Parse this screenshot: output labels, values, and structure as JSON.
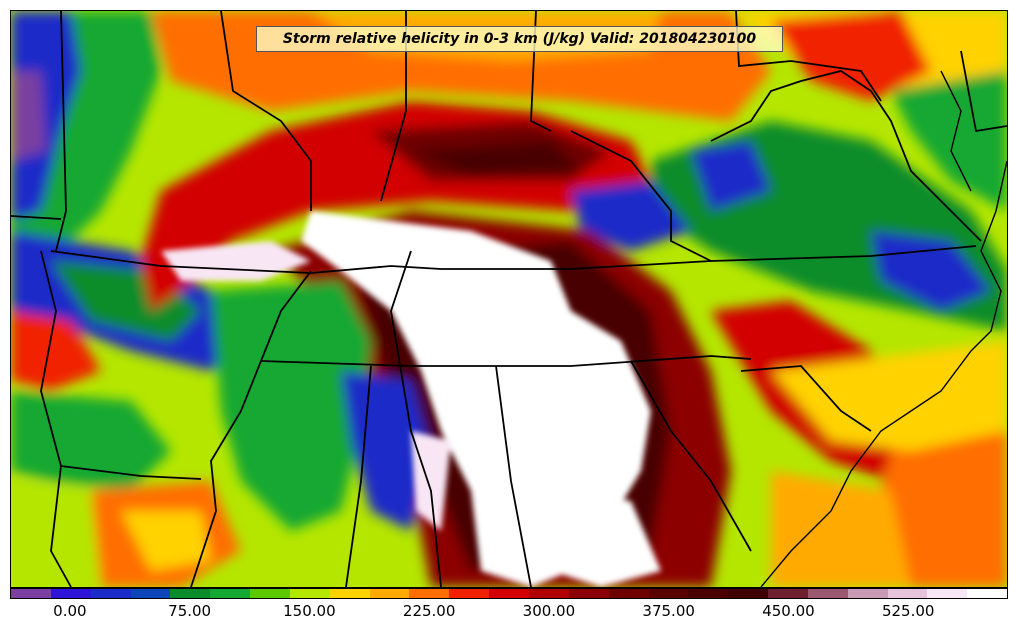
{
  "title": "Storm relative helicity in 0-3 km (J/kg) Valid: 201804230100",
  "colorbar": {
    "colors": [
      "#7a3fa0",
      "#2d14d6",
      "#1c2cc8",
      "#0c46b8",
      "#0a8c2a",
      "#12a832",
      "#5cc800",
      "#b4e600",
      "#ffd200",
      "#ffaa00",
      "#ff6e00",
      "#f02000",
      "#d20000",
      "#b00000",
      "#8c0000",
      "#6e0000",
      "#5a0000",
      "#4a0000",
      "#3e0000",
      "#6e2030",
      "#9a5870",
      "#c89ab4",
      "#e6c4dc",
      "#f8e6f4",
      "#ffffff"
    ],
    "tick_labels": [
      "0.00",
      "75.00",
      "150.00",
      "225.00",
      "300.00",
      "375.00",
      "450.00",
      "525.00"
    ],
    "tick_values": [
      0,
      75,
      150,
      225,
      300,
      375,
      450,
      525
    ],
    "vmin": -37.5,
    "vmax": 587.5
  }
}
